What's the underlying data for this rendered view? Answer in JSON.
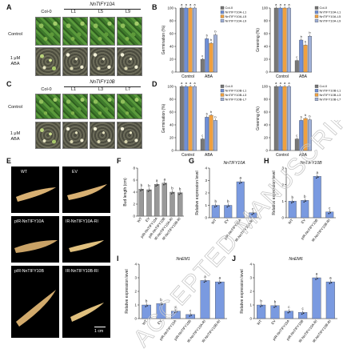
{
  "panel_labels": {
    "A": "A",
    "B": "B",
    "C": "C",
    "D": "D",
    "E": "E",
    "F": "F",
    "G": "G",
    "H": "H",
    "I": "I",
    "J": "J"
  },
  "panelA": {
    "group_title": "NnTIFY10A",
    "columns": [
      "Col-0",
      "L1",
      "L5",
      "L9"
    ],
    "rows": [
      "Control",
      "1 μM\nABA"
    ]
  },
  "panelC": {
    "group_title": "NnTIFY10B",
    "columns": [
      "Col-0",
      "L1",
      "L3",
      "L7"
    ],
    "rows": [
      "Control",
      "1 μM\nABA"
    ]
  },
  "panelE": {
    "labels": [
      "WT",
      "EV",
      "pIR-NnTIFY10A",
      "IR-NnTIFY10A-RI",
      "pIR-NnTIFY10B",
      "IR-NnTIFY10B-RI"
    ],
    "scale": "1 cm"
  },
  "watermark": "ACCEPTED MANUSCRIPT",
  "colors": {
    "col0": "#777777",
    "line1": "#6f8fd6",
    "line2": "#f0a040",
    "line3": "#9fb0d8",
    "gray_bar": "#999999",
    "blue_bar": "#7a9ae0"
  },
  "chart_data": [
    {
      "id": "B-germination",
      "type": "bar",
      "ylabel": "Germination (%)",
      "ylim": [
        0,
        100
      ],
      "yticks": [
        0,
        20,
        40,
        60,
        80,
        100
      ],
      "categories": [
        "Control",
        "ABA"
      ],
      "legend": [
        "Col-0",
        "NnTIFY10A-L1",
        "NnTIFY10A-L5",
        "NnTIFY10A-L9"
      ],
      "series": [
        {
          "name": "Col-0",
          "values": [
            100,
            20
          ],
          "letters": [
            "a",
            "c"
          ]
        },
        {
          "name": "NnTIFY10A-L1",
          "values": [
            100,
            52
          ],
          "letters": [
            "a",
            "b"
          ]
        },
        {
          "name": "NnTIFY10A-L5",
          "values": [
            100,
            45
          ],
          "letters": [
            "a",
            "b"
          ]
        },
        {
          "name": "NnTIFY10A-L9",
          "values": [
            100,
            58
          ],
          "letters": [
            "a",
            "b"
          ]
        }
      ]
    },
    {
      "id": "B-greening",
      "type": "bar",
      "ylabel": "Greening (%)",
      "ylim": [
        0,
        100
      ],
      "yticks": [
        0,
        20,
        40,
        60,
        80,
        100
      ],
      "categories": [
        "Control",
        "ABA"
      ],
      "legend": [
        "Col-0",
        "NnTIFY10A-L1",
        "NnTIFY10A-L5",
        "NnTIFY10A-L9"
      ],
      "series": [
        {
          "name": "Col-0",
          "values": [
            100,
            18
          ],
          "letters": [
            "a",
            "c"
          ]
        },
        {
          "name": "NnTIFY10A-L1",
          "values": [
            100,
            50
          ],
          "letters": [
            "a",
            "b"
          ]
        },
        {
          "name": "NnTIFY10A-L5",
          "values": [
            100,
            42
          ],
          "letters": [
            "a",
            "b"
          ]
        },
        {
          "name": "NnTIFY10A-L9",
          "values": [
            100,
            56
          ],
          "letters": [
            "a",
            "b"
          ]
        }
      ]
    },
    {
      "id": "D-germination",
      "type": "bar",
      "ylabel": "Germination (%)",
      "ylim": [
        0,
        100
      ],
      "yticks": [
        0,
        20,
        40,
        60,
        80,
        100
      ],
      "categories": [
        "Control",
        "ABA"
      ],
      "legend": [
        "Col-0",
        "NnTIFY10B-L1",
        "NnTIFY10B-L3",
        "NnTIFY10B-L7"
      ],
      "series": [
        {
          "name": "Col-0",
          "values": [
            100,
            18
          ],
          "letters": [
            "a",
            "c"
          ]
        },
        {
          "name": "NnTIFY10B-L1",
          "values": [
            100,
            52
          ],
          "letters": [
            "a",
            "b"
          ]
        },
        {
          "name": "NnTIFY10B-L3",
          "values": [
            100,
            55
          ],
          "letters": [
            "a",
            "b"
          ]
        },
        {
          "name": "NnTIFY10B-L7",
          "values": [
            100,
            47
          ],
          "letters": [
            "a",
            "b"
          ]
        }
      ]
    },
    {
      "id": "D-greening",
      "type": "bar",
      "ylabel": "Greening (%)",
      "ylim": [
        0,
        100
      ],
      "yticks": [
        0,
        20,
        40,
        60,
        80,
        100
      ],
      "categories": [
        "Control",
        "ABA"
      ],
      "legend": [
        "Col-0",
        "NnTIFY10B-L1",
        "NnTIFY10B-L3",
        "NnTIFY10B-L7"
      ],
      "series": [
        {
          "name": "Col-0",
          "values": [
            100,
            18
          ],
          "letters": [
            "a",
            "c"
          ]
        },
        {
          "name": "NnTIFY10B-L1",
          "values": [
            100,
            47
          ],
          "letters": [
            "a",
            "b"
          ]
        },
        {
          "name": "NnTIFY10B-L3",
          "values": [
            100,
            50
          ],
          "letters": [
            "a",
            "b"
          ]
        },
        {
          "name": "NnTIFY10B-L7",
          "values": [
            100,
            48
          ],
          "letters": [
            "a",
            "b"
          ]
        }
      ]
    },
    {
      "id": "F",
      "type": "bar",
      "ylabel": "Bud length (cm)",
      "ylim": [
        0,
        8
      ],
      "yticks": [
        0,
        2,
        4,
        6,
        8
      ],
      "categories": [
        "WT",
        "EV",
        "pIR-NnTIFY10A",
        "pIR-NnTIFY10B",
        "IR-NnTIFY10A-RI",
        "IR-NnTIFY10B-RI"
      ],
      "values": [
        4.5,
        4.4,
        5.3,
        5.5,
        4.0,
        3.9
      ],
      "letters": [
        "b",
        "b",
        "a",
        "a",
        "b",
        "b"
      ]
    },
    {
      "id": "G",
      "type": "bar",
      "title": "NnTIFY10A",
      "ylabel": "Relative expression level",
      "ylim": [
        0,
        4
      ],
      "yticks": [
        0,
        1,
        2,
        3,
        4
      ],
      "categories": [
        "WT",
        "EV",
        "pIR-NnTIFY10A",
        "IR-NnTIFY10A-RI"
      ],
      "values": [
        1.0,
        1.0,
        2.9,
        0.4
      ],
      "letters": [
        "b",
        "b",
        "a",
        "c"
      ]
    },
    {
      "id": "H",
      "type": "bar",
      "title": "NnTIFY10B",
      "ylabel": "Relative expression level",
      "ylim": [
        0,
        3
      ],
      "yticks": [
        0,
        1,
        2,
        3
      ],
      "categories": [
        "WT",
        "EV",
        "pIR-NnTIFY10B",
        "IR-NnTIFY10B-RI"
      ],
      "values": [
        1.0,
        1.05,
        2.5,
        0.35
      ],
      "letters": [
        "b",
        "b",
        "a",
        "c"
      ]
    },
    {
      "id": "I",
      "type": "bar",
      "title": "NnEM1",
      "ylabel": "Relative expression level",
      "ylim": [
        0,
        4
      ],
      "yticks": [
        0,
        1,
        2,
        3,
        4
      ],
      "categories": [
        "WT",
        "EV",
        "pIR-NnTIFY10A",
        "pIR-NnTIFY10B",
        "IR-NnTIFY10A-RI",
        "IR-NnTIFY10B-RI"
      ],
      "values": [
        1.0,
        1.1,
        0.55,
        0.3,
        2.8,
        2.7
      ],
      "letters": [
        "b",
        "b",
        "c",
        "c",
        "a",
        "a"
      ]
    },
    {
      "id": "J",
      "type": "bar",
      "title": "NnEM6",
      "ylabel": "Relative expression level",
      "ylim": [
        0,
        4
      ],
      "yticks": [
        0,
        1,
        2,
        3,
        4
      ],
      "categories": [
        "WT",
        "EV",
        "pIR-NnTIFY10A",
        "pIR-NnTIFY10B",
        "IR-NnTIFY10A-RI",
        "IR-NnTIFY10B-RI"
      ],
      "values": [
        1.0,
        0.95,
        0.55,
        0.45,
        3.0,
        2.7
      ],
      "letters": [
        "b",
        "b",
        "c",
        "c",
        "a",
        "a"
      ]
    }
  ]
}
